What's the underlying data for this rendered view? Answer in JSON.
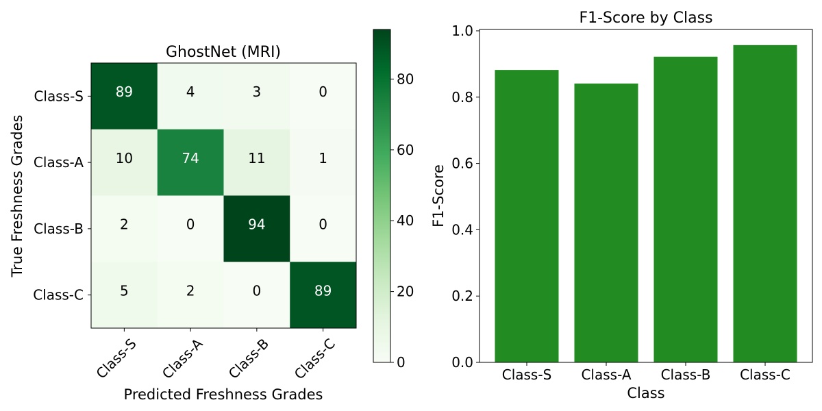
{
  "chart_data": [
    {
      "type": "heatmap",
      "title": "GhostNet (MRI)",
      "xlabel": "Predicted Freshness Grades",
      "ylabel": "True Freshness Grades",
      "x_categories": [
        "Class-S",
        "Class-A",
        "Class-B",
        "Class-C"
      ],
      "y_categories": [
        "Class-S",
        "Class-A",
        "Class-B",
        "Class-C"
      ],
      "values": [
        [
          89,
          4,
          3,
          0
        ],
        [
          10,
          74,
          11,
          1
        ],
        [
          2,
          0,
          94,
          0
        ],
        [
          5,
          2,
          0,
          89
        ]
      ],
      "colorbar": {
        "min": 0,
        "max": 94,
        "ticks": [
          0,
          20,
          40,
          60,
          80
        ]
      },
      "colormap": "Greens"
    },
    {
      "type": "bar",
      "title": "F1-Score by Class",
      "xlabel": "Class",
      "ylabel": "F1-Score",
      "categories": [
        "Class-S",
        "Class-A",
        "Class-B",
        "Class-C"
      ],
      "values": [
        0.882,
        0.841,
        0.922,
        0.957
      ],
      "ylim": [
        0,
        1.0
      ],
      "yticks": [
        "0.0",
        "0.2",
        "0.4",
        "0.6",
        "0.8",
        "1.0"
      ],
      "color": "#228b22"
    }
  ]
}
